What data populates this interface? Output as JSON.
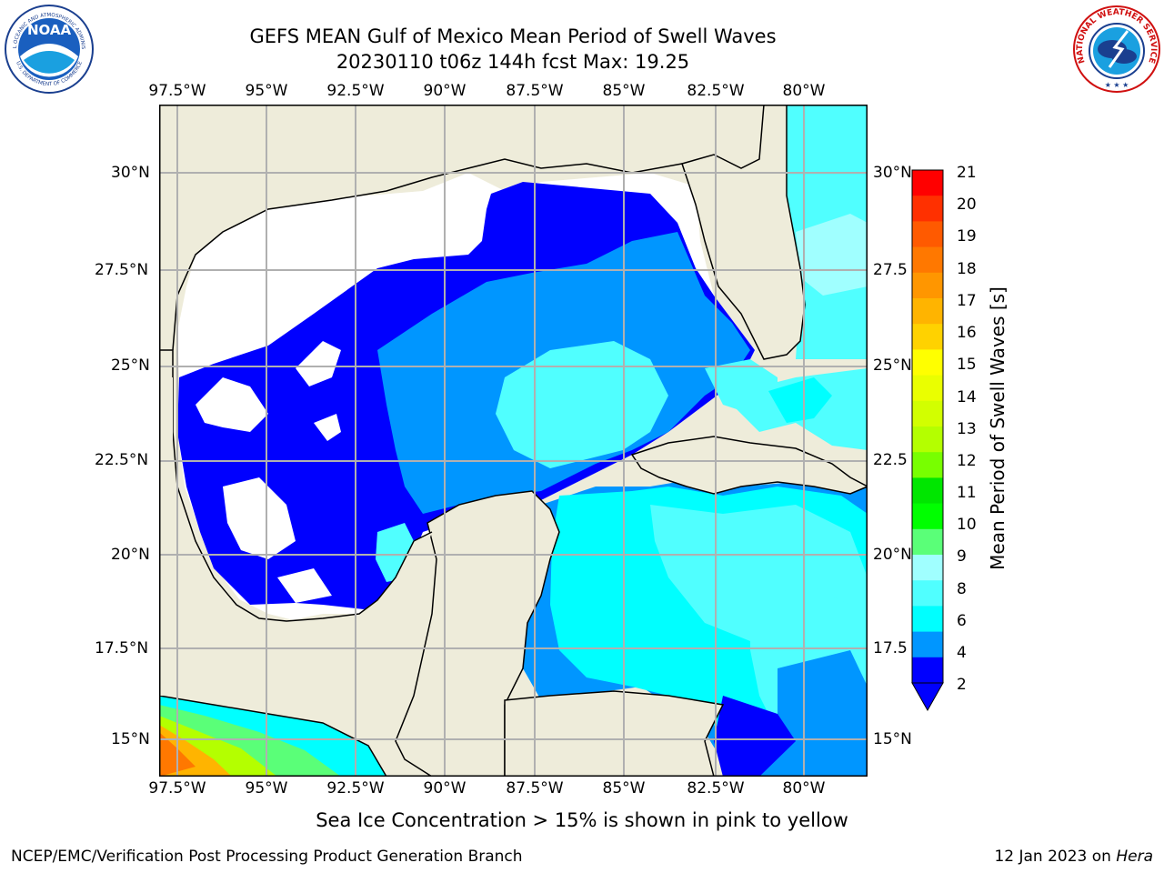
{
  "title": {
    "line1": "GEFS MEAN Gulf of Mexico Mean Period of Swell Waves",
    "line2": "20230110 t06z 144h fcst   Max: 19.25"
  },
  "lon_labels": [
    "97.5°W",
    "95°W",
    "92.5°W",
    "90°W",
    "87.5°W",
    "85°W",
    "82.5°W",
    "80°W"
  ],
  "lat_labels_left": [
    "30°N",
    "27.5°N",
    "25°N",
    "22.5°N",
    "20°N",
    "17.5°N",
    "15°N"
  ],
  "lat_labels_right": [
    "30°N",
    "27.5",
    "25°N",
    "22.5",
    "20°N",
    "17.5",
    "15°N"
  ],
  "colorbar": {
    "label": "Mean Period of Swell Waves [s]",
    "ticks": [
      "21",
      "20",
      "19",
      "18",
      "17",
      "16",
      "15",
      "14",
      "13",
      "12",
      "11",
      "10",
      "9",
      "8",
      "6",
      "4",
      "2"
    ],
    "colors": [
      "#ff0000",
      "#ff3000",
      "#ff5a00",
      "#ff7800",
      "#ff9600",
      "#ffb400",
      "#ffd200",
      "#ffff00",
      "#eaff00",
      "#d2ff00",
      "#b4ff00",
      "#78ff00",
      "#00e600",
      "#00ff00",
      "#5aff78",
      "#a0ffff",
      "#50ffff",
      "#00ffff",
      "#0096ff",
      "#0000ff"
    ]
  },
  "notes": {
    "sea_ice": "Sea Ice Concentration > 15% is shown in pink to yellow"
  },
  "footer": {
    "left": "NCEP/EMC/Verification Post Processing Product Generation Branch",
    "right_date": "12 Jan 2023 on ",
    "right_machine": "Hera"
  },
  "logos": {
    "noaa": "NOAA",
    "noaa_ring_top": "NATIONAL OCEANIC AND ATMOSPHERIC ADMINISTRATION",
    "noaa_ring_bottom": "U.S. DEPARTMENT OF COMMERCE",
    "nws_ring": "NATIONAL WEATHER SERVICE"
  },
  "colors": {
    "land": "#eeecda",
    "deep_blue": "#0000ff",
    "mid_blue": "#0096ff",
    "cyan": "#00ffff",
    "light_cyan": "#50ffff",
    "grid": "#b0b0b0"
  }
}
